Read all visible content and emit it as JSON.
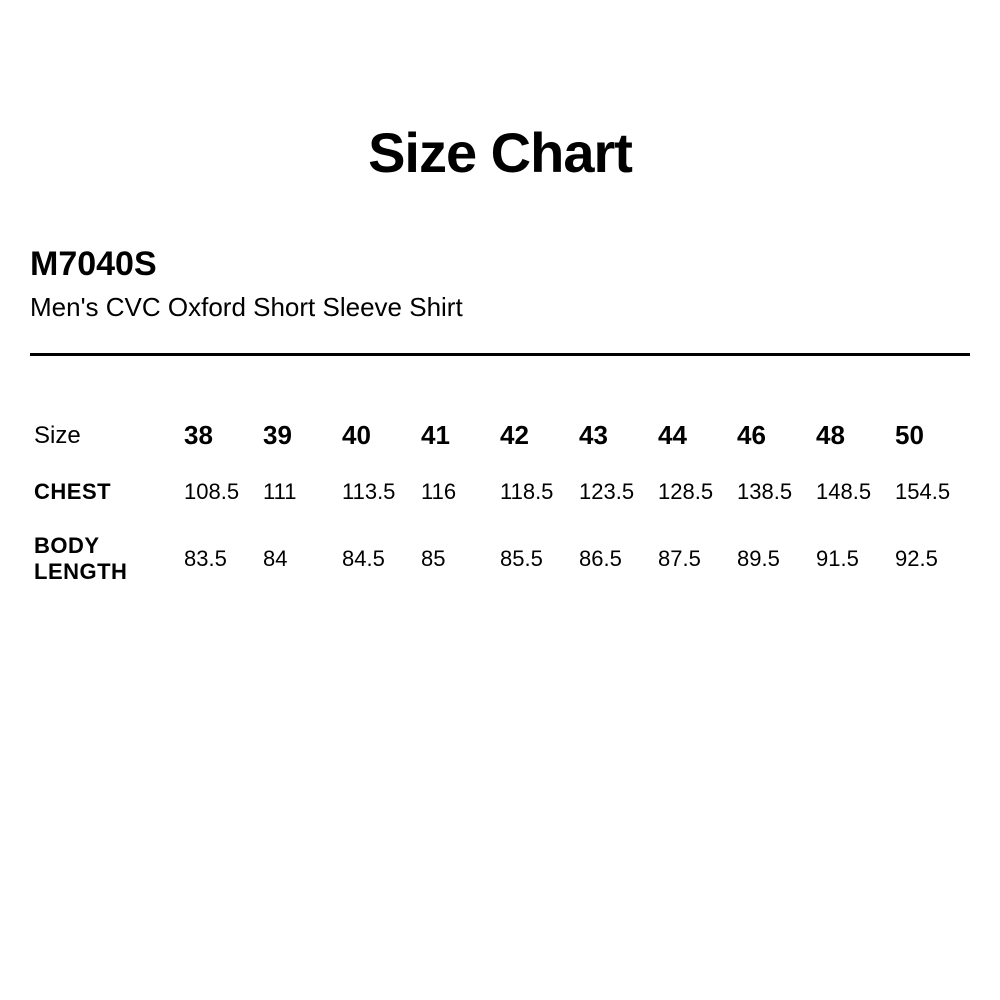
{
  "title": "Size Chart",
  "product_code": "M7040S",
  "product_name": "Men's CVC Oxford Short Sleeve Shirt",
  "table": {
    "size_label": "Size",
    "columns": [
      "38",
      "39",
      "40",
      "41",
      "42",
      "43",
      "44",
      "46",
      "48",
      "50"
    ],
    "rows": [
      {
        "label": "CHEST",
        "values": [
          "108.5",
          "111",
          "113.5",
          "116",
          "118.5",
          "123.5",
          "128.5",
          "138.5",
          "148.5",
          "154.5"
        ]
      },
      {
        "label": "BODY LENGTH",
        "values": [
          "83.5",
          "84",
          "84.5",
          "85",
          "85.5",
          "86.5",
          "87.5",
          "89.5",
          "91.5",
          "92.5"
        ]
      }
    ]
  },
  "styling": {
    "background_color": "#ffffff",
    "text_color": "#000000",
    "title_fontsize": 56,
    "title_fontweight": 900,
    "product_code_fontsize": 34,
    "product_name_fontsize": 26,
    "divider_width": 3,
    "header_fontsize": 26,
    "cell_fontsize": 22,
    "rowlabel_width": 150
  }
}
